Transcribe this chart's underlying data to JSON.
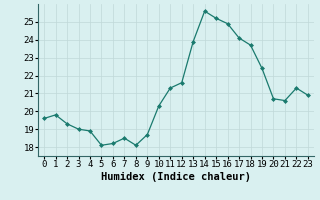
{
  "x": [
    0,
    1,
    2,
    3,
    4,
    5,
    6,
    7,
    8,
    9,
    10,
    11,
    12,
    13,
    14,
    15,
    16,
    17,
    18,
    19,
    20,
    21,
    22,
    23
  ],
  "y": [
    19.6,
    19.8,
    19.3,
    19.0,
    18.9,
    18.1,
    18.2,
    18.5,
    18.1,
    18.7,
    20.3,
    21.3,
    21.6,
    23.9,
    25.6,
    25.2,
    24.9,
    24.1,
    23.7,
    22.4,
    20.7,
    20.6,
    21.3,
    20.9
  ],
  "line_color": "#1a7a6e",
  "marker": "D",
  "marker_size": 2.0,
  "bg_color": "#d9f0f0",
  "grid_color": "#c0d8d8",
  "xlabel": "Humidex (Indice chaleur)",
  "xlim": [
    -0.5,
    23.5
  ],
  "ylim": [
    17.5,
    26.0
  ],
  "yticks": [
    18,
    19,
    20,
    21,
    22,
    23,
    24,
    25
  ],
  "xtick_labels": [
    "0",
    "1",
    "2",
    "3",
    "4",
    "5",
    "6",
    "7",
    "8",
    "9",
    "10",
    "11",
    "12",
    "13",
    "14",
    "15",
    "16",
    "17",
    "18",
    "19",
    "20",
    "21",
    "22",
    "23"
  ],
  "xlabel_fontsize": 7.5,
  "tick_fontsize": 6.5,
  "spine_color": "#336666"
}
